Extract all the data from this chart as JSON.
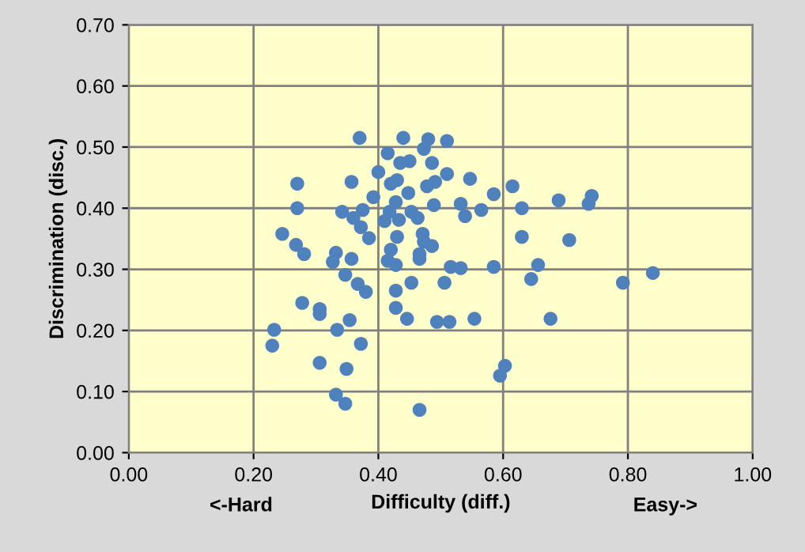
{
  "chart_data": {
    "type": "scatter",
    "xlabel": "Difficulty (diff.)",
    "ylabel": "Discrimination (disc.)",
    "annotations": [
      "<-Hard",
      "Easy->"
    ],
    "xlim": [
      0,
      1
    ],
    "ylim": [
      0,
      0.7
    ],
    "xticks": [
      {
        "value": 0,
        "label": "0.00"
      },
      {
        "value": 0.2,
        "label": "0.20"
      },
      {
        "value": 0.4,
        "label": "0.40"
      },
      {
        "value": 0.6,
        "label": "0.60"
      },
      {
        "value": 0.8,
        "label": "0.80"
      },
      {
        "value": 1,
        "label": "1.00"
      }
    ],
    "yticks": [
      {
        "value": 0,
        "label": "0.00"
      },
      {
        "value": 0.1,
        "label": "0.10"
      },
      {
        "value": 0.2,
        "label": "0.20"
      },
      {
        "value": 0.3,
        "label": "0.30"
      },
      {
        "value": 0.4,
        "label": "0.40"
      },
      {
        "value": 0.5,
        "label": "0.50"
      },
      {
        "value": 0.6,
        "label": "0.60"
      },
      {
        "value": 0.7,
        "label": "0.70"
      }
    ],
    "grid": true,
    "marker": "circle",
    "series": [
      {
        "color": "#4f81bd",
        "x": [
          0.37,
          0.44,
          0.48,
          0.51,
          0.415,
          0.473,
          0.435,
          0.45,
          0.486,
          0.4,
          0.27,
          0.357,
          0.42,
          0.43,
          0.478,
          0.491,
          0.51,
          0.547,
          0.585,
          0.615,
          0.392,
          0.448,
          0.27,
          0.342,
          0.375,
          0.36,
          0.372,
          0.385,
          0.41,
          0.418,
          0.428,
          0.453,
          0.463,
          0.433,
          0.489,
          0.532,
          0.539,
          0.565,
          0.246,
          0.268,
          0.281,
          0.332,
          0.327,
          0.357,
          0.347,
          0.367,
          0.38,
          0.43,
          0.42,
          0.415,
          0.428,
          0.471,
          0.473,
          0.486,
          0.466,
          0.466,
          0.428,
          0.453,
          0.506,
          0.516,
          0.532,
          0.585,
          0.278,
          0.306,
          0.306,
          0.233,
          0.23,
          0.334,
          0.354,
          0.372,
          0.306,
          0.349,
          0.332,
          0.347,
          0.428,
          0.446,
          0.494,
          0.514,
          0.554,
          0.603,
          0.595,
          0.466,
          0.63,
          0.689,
          0.742,
          0.737,
          0.63,
          0.706,
          0.656,
          0.645,
          0.792,
          0.84,
          0.676
        ],
        "values": [
          0.515,
          0.515,
          0.513,
          0.51,
          0.49,
          0.497,
          0.474,
          0.477,
          0.474,
          0.459,
          0.44,
          0.443,
          0.44,
          0.446,
          0.436,
          0.443,
          0.456,
          0.448,
          0.423,
          0.436,
          0.418,
          0.425,
          0.4,
          0.394,
          0.397,
          0.384,
          0.369,
          0.351,
          0.379,
          0.394,
          0.41,
          0.394,
          0.384,
          0.381,
          0.405,
          0.407,
          0.387,
          0.397,
          0.358,
          0.34,
          0.325,
          0.327,
          0.312,
          0.317,
          0.291,
          0.276,
          0.263,
          0.353,
          0.332,
          0.314,
          0.307,
          0.358,
          0.345,
          0.338,
          0.325,
          0.317,
          0.265,
          0.278,
          0.278,
          0.304,
          0.302,
          0.304,
          0.245,
          0.235,
          0.227,
          0.201,
          0.175,
          0.201,
          0.217,
          0.178,
          0.147,
          0.137,
          0.095,
          0.08,
          0.237,
          0.219,
          0.214,
          0.214,
          0.219,
          0.142,
          0.126,
          0.07,
          0.4,
          0.413,
          0.42,
          0.407,
          0.353,
          0.348,
          0.307,
          0.284,
          0.278,
          0.294,
          0.219
        ]
      }
    ]
  }
}
